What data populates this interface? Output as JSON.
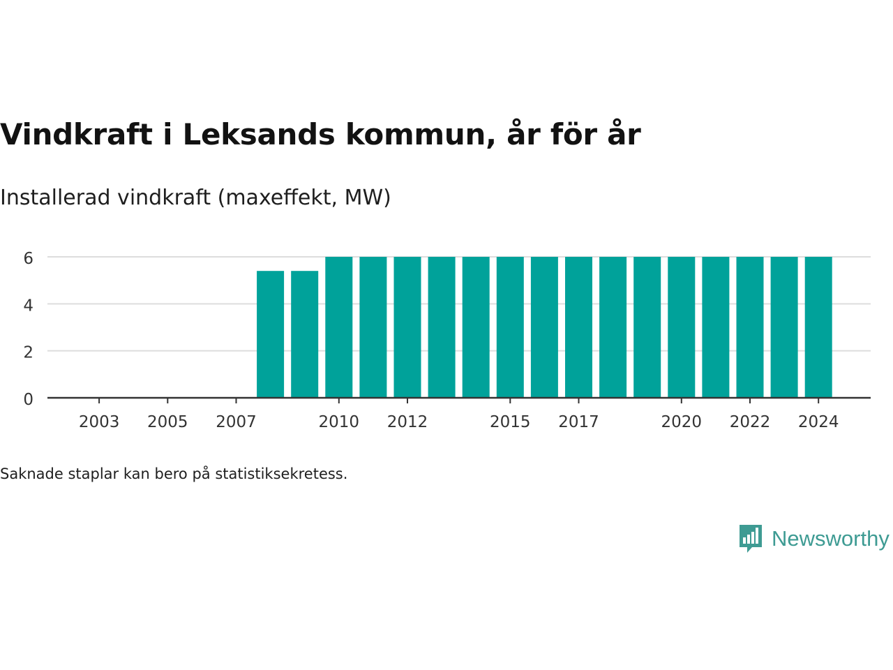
{
  "title": "Vindkraft i Leksands kommun, år för år",
  "subtitle": "Installerad vindkraft (maxeffekt, MW)",
  "footnote": "Saknade staplar kan bero på statistiksekretess.",
  "brand": {
    "name": "Newsworthy",
    "icon": "newsworthy-logo-icon"
  },
  "colors": {
    "bar": "#00a29a",
    "grid": "#dddddd",
    "axis": "#333333",
    "text": "#333333",
    "brand": "#3e9b93"
  },
  "chart_data": {
    "type": "bar",
    "categories": [
      2002,
      2003,
      2004,
      2005,
      2006,
      2007,
      2008,
      2009,
      2010,
      2011,
      2012,
      2013,
      2014,
      2015,
      2016,
      2017,
      2018,
      2019,
      2020,
      2021,
      2022,
      2023,
      2024
    ],
    "values": [
      0,
      0,
      0,
      0,
      0,
      0,
      5.4,
      5.4,
      6,
      6,
      6,
      6,
      6,
      6,
      6,
      6,
      6,
      6,
      6,
      6,
      6,
      6,
      6
    ],
    "x_tick_labels": [
      "2003",
      "2005",
      "2007",
      "2010",
      "2012",
      "2015",
      "2017",
      "2020",
      "2022",
      "2024"
    ],
    "y_ticks": [
      0,
      2,
      4,
      6
    ],
    "ylim": [
      0,
      6
    ],
    "xlabel": "",
    "ylabel": "",
    "grid": true,
    "legend": "none"
  }
}
